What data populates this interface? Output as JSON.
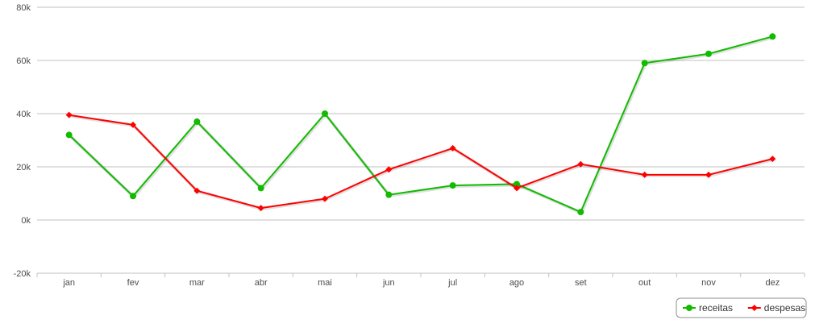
{
  "chart_data": {
    "type": "line",
    "categories": [
      "jan",
      "fev",
      "mar",
      "abr",
      "mai",
      "jun",
      "jul",
      "ago",
      "set",
      "out",
      "nov",
      "dez"
    ],
    "series": [
      {
        "name": "receitas",
        "color": "#11bb00",
        "marker": "circle",
        "values": [
          32000,
          9000,
          37000,
          12000,
          40000,
          9500,
          13000,
          13500,
          3000,
          59000,
          62500,
          69000
        ]
      },
      {
        "name": "despesas",
        "color": "#ff0000",
        "marker": "diamond",
        "values": [
          39500,
          35800,
          11000,
          4500,
          8000,
          19000,
          27000,
          12000,
          21000,
          17000,
          17000,
          23000
        ]
      }
    ],
    "yticks": [
      "-20k",
      "0k",
      "20k",
      "40k",
      "60k",
      "80k"
    ],
    "ylim": [
      -20000,
      80000
    ],
    "grid": true,
    "legend": "bottom-right"
  }
}
